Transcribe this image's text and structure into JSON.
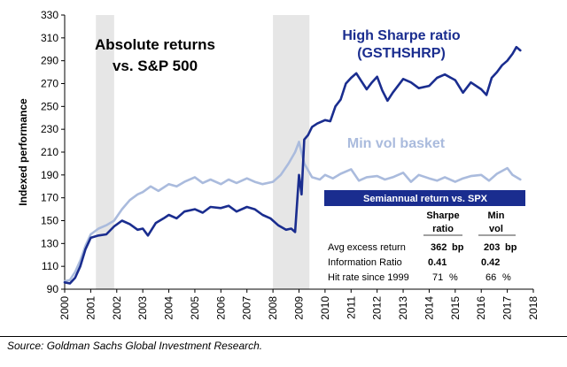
{
  "chart_data": {
    "type": "line",
    "title_line1": "Absolute returns",
    "title_line2": "vs. S&P 500",
    "ylabel": "Indexed performance",
    "xlabel": "",
    "ylim": [
      90,
      330
    ],
    "xlim": [
      2000,
      2018
    ],
    "yticks": [
      "90",
      "110",
      "130",
      "150",
      "170",
      "190",
      "210",
      "230",
      "250",
      "270",
      "290",
      "310",
      "330"
    ],
    "xticks": [
      "2000",
      "2001",
      "2002",
      "2003",
      "2004",
      "2005",
      "2006",
      "2007",
      "2008",
      "2009",
      "2010",
      "2011",
      "2012",
      "2013",
      "2014",
      "2015",
      "2016",
      "2017",
      "2018"
    ],
    "shaded_periods": [
      [
        2001.2,
        2001.9
      ],
      [
        2008.0,
        2009.4
      ]
    ],
    "series": [
      {
        "name": "High Sharpe ratio (GSTHSHRP)",
        "label_line1": "High Sharpe ratio",
        "label_line2": "(GSTHSHRP)",
        "color": "#1a2d8f",
        "x": [
          2000.0,
          2000.2,
          2000.4,
          2000.6,
          2000.8,
          2001.0,
          2001.3,
          2001.6,
          2001.9,
          2002.2,
          2002.5,
          2002.8,
          2003.0,
          2003.2,
          2003.5,
          2003.8,
          2004.0,
          2004.3,
          2004.6,
          2005.0,
          2005.3,
          2005.6,
          2006.0,
          2006.3,
          2006.6,
          2007.0,
          2007.3,
          2007.6,
          2007.9,
          2008.2,
          2008.5,
          2008.7,
          2008.85,
          2009.0,
          2009.1,
          2009.2,
          2009.35,
          2009.5,
          2009.7,
          2010.0,
          2010.2,
          2010.4,
          2010.6,
          2010.8,
          2011.0,
          2011.2,
          2011.4,
          2011.6,
          2011.8,
          2012.0,
          2012.2,
          2012.4,
          2012.6,
          2012.8,
          2013.0,
          2013.3,
          2013.6,
          2014.0,
          2014.3,
          2014.6,
          2015.0,
          2015.3,
          2015.6,
          2016.0,
          2016.2,
          2016.4,
          2016.6,
          2016.8,
          2017.0,
          2017.2,
          2017.35,
          2017.5
        ],
        "values": [
          96,
          95,
          100,
          110,
          125,
          135,
          137,
          138,
          145,
          150,
          147,
          142,
          143,
          137,
          148,
          152,
          155,
          152,
          158,
          160,
          157,
          162,
          161,
          163,
          158,
          162,
          160,
          155,
          152,
          146,
          142,
          143,
          140,
          190,
          173,
          221,
          225,
          232,
          235,
          238,
          237,
          250,
          256,
          270,
          275,
          279,
          272,
          265,
          271,
          276,
          264,
          255,
          262,
          268,
          274,
          271,
          266,
          268,
          275,
          278,
          273,
          262,
          271,
          265,
          260,
          275,
          280,
          286,
          290,
          296,
          302,
          299
        ]
      },
      {
        "name": "Min vol basket",
        "label": "Min vol basket",
        "color": "#aabbdd",
        "x": [
          2000.0,
          2000.2,
          2000.4,
          2000.6,
          2000.8,
          2001.0,
          2001.3,
          2001.6,
          2001.9,
          2002.2,
          2002.5,
          2002.8,
          2003.0,
          2003.3,
          2003.6,
          2004.0,
          2004.3,
          2004.6,
          2005.0,
          2005.3,
          2005.6,
          2006.0,
          2006.3,
          2006.6,
          2007.0,
          2007.3,
          2007.6,
          2008.0,
          2008.3,
          2008.6,
          2008.85,
          2009.0,
          2009.2,
          2009.5,
          2009.8,
          2010.0,
          2010.3,
          2010.6,
          2011.0,
          2011.3,
          2011.6,
          2012.0,
          2012.3,
          2012.6,
          2013.0,
          2013.3,
          2013.6,
          2014.0,
          2014.3,
          2014.6,
          2015.0,
          2015.3,
          2015.6,
          2016.0,
          2016.3,
          2016.6,
          2017.0,
          2017.2,
          2017.5
        ],
        "values": [
          97,
          98,
          105,
          115,
          128,
          138,
          143,
          146,
          150,
          160,
          168,
          173,
          175,
          180,
          176,
          182,
          180,
          184,
          188,
          183,
          186,
          182,
          186,
          183,
          187,
          184,
          182,
          184,
          190,
          200,
          210,
          219,
          200,
          188,
          186,
          190,
          187,
          191,
          195,
          185,
          188,
          189,
          186,
          188,
          192,
          184,
          190,
          187,
          185,
          188,
          184,
          187,
          189,
          190,
          185,
          191,
          196,
          190,
          186
        ]
      }
    ],
    "table": {
      "header": "Semiannual return vs. SPX",
      "col1_line1": "Sharpe",
      "col1_line2": "ratio",
      "col2_line1": "Min",
      "col2_line2": "vol",
      "rows": [
        {
          "label": "Avg excess return",
          "v1": "362",
          "u1": "bp",
          "v2": "203",
          "u2": "bp"
        },
        {
          "label": "Information Ratio",
          "v1": "0.41",
          "u1": "",
          "v2": "0.42",
          "u2": ""
        },
        {
          "label": "Hit rate since 1999",
          "v1": "71",
          "u1": "%",
          "v2": "66",
          "u2": "%"
        }
      ],
      "header_color": "#1a2d8f"
    }
  },
  "source": "Source: Goldman Sachs Global Investment Research."
}
